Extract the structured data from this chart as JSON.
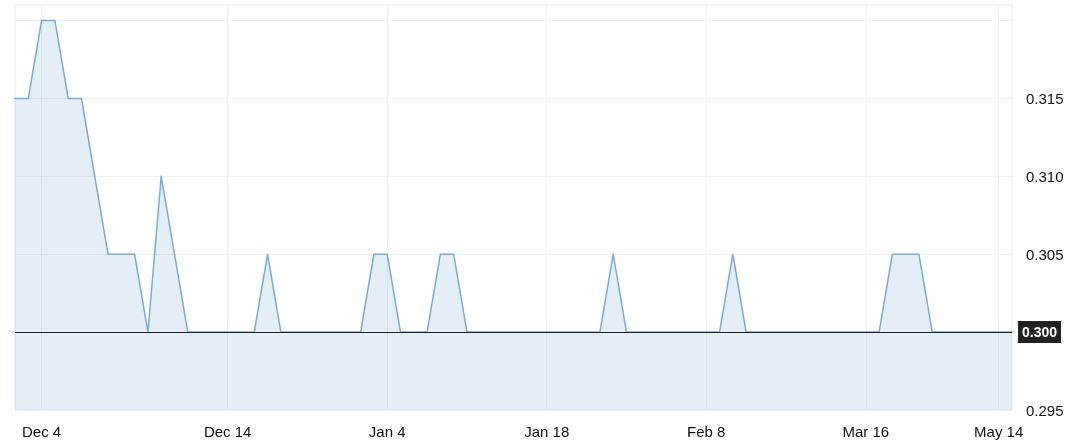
{
  "chart_data": {
    "type": "area",
    "categories": [
      null,
      null,
      "Dec 4",
      null,
      null,
      null,
      null,
      null,
      null,
      null,
      null,
      null,
      null,
      null,
      null,
      null,
      "Dec 14",
      null,
      null,
      null,
      null,
      null,
      null,
      null,
      null,
      null,
      null,
      null,
      "Jan 4",
      null,
      null,
      null,
      null,
      null,
      null,
      null,
      null,
      null,
      null,
      null,
      "Jan 18",
      null,
      null,
      null,
      null,
      null,
      null,
      null,
      null,
      null,
      null,
      null,
      "Feb 8",
      null,
      null,
      null,
      null,
      null,
      null,
      null,
      null,
      null,
      null,
      null,
      "Mar 16",
      null,
      null,
      null,
      null,
      null,
      null,
      null,
      null,
      null,
      "May 14",
      null
    ],
    "series": [
      {
        "color": "#7aaad9",
        "values": [
          0.315,
          0.315,
          0.32,
          0.32,
          0.315,
          0.315,
          0.31,
          0.305,
          0.305,
          0.305,
          0.3,
          0.31,
          0.305,
          0.3,
          0.3,
          0.3,
          0.3,
          0.3,
          0.3,
          0.305,
          0.3,
          0.3,
          0.3,
          0.3,
          0.3,
          0.3,
          0.3,
          0.305,
          0.305,
          0.3,
          0.3,
          0.3,
          0.305,
          0.305,
          0.3,
          0.3,
          0.3,
          0.3,
          0.3,
          0.3,
          0.3,
          0.3,
          0.3,
          0.3,
          0.3,
          0.305,
          0.3,
          0.3,
          0.3,
          0.3,
          0.3,
          0.3,
          0.3,
          0.3,
          0.305,
          0.3,
          0.3,
          0.3,
          0.3,
          0.3,
          0.3,
          0.3,
          0.3,
          0.3,
          0.3,
          0.3,
          0.305,
          0.305,
          0.305,
          0.3,
          0.3,
          0.3,
          0.3,
          0.3,
          0.3,
          0.3
        ]
      }
    ],
    "ylim": [
      0.295,
      0.321
    ],
    "yticks": [
      0.295,
      {
        "value": 0.3,
        "label": null
      },
      0.305,
      {
        "value": 0.31,
        "label": "0.310"
      },
      0.315,
      {
        "value": 0.32,
        "label": null
      }
    ],
    "ref_lines": [
      {
        "axis": "y",
        "value": 0.3,
        "label": "0.300",
        "color": "#222222"
      }
    ],
    "grid": true,
    "marker": "none",
    "line_style": "solid"
  }
}
